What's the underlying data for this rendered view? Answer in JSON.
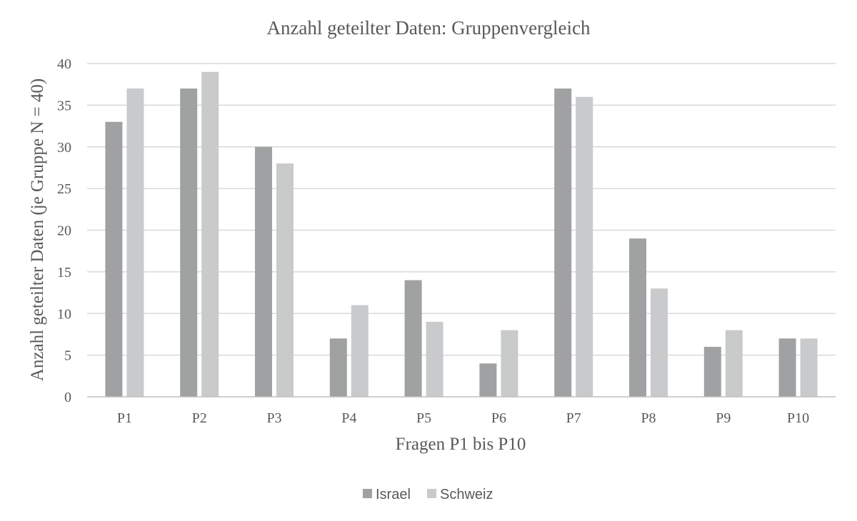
{
  "chart_data": {
    "type": "bar",
    "title": "Anzahl geteilter Daten: Gruppenvergleich",
    "xlabel": "Fragen P1 bis P10",
    "ylabel": "Anzahl geteilter Daten (je Gruppe N = 40)",
    "categories": [
      "P1",
      "P2",
      "P3",
      "P4",
      "P5",
      "P6",
      "P7",
      "P8",
      "P9",
      "P10"
    ],
    "series": [
      {
        "name": "Israel",
        "values": [
          33,
          37,
          30,
          7,
          14,
          4,
          37,
          19,
          6,
          7
        ],
        "color": "#a0a1a2"
      },
      {
        "name": "Schweiz",
        "values": [
          37,
          39,
          28,
          11,
          9,
          8,
          36,
          13,
          8,
          7
        ],
        "color": "#c9cacb"
      }
    ],
    "ylim": [
      0,
      40
    ],
    "yticks": [
      0,
      5,
      10,
      15,
      20,
      25,
      30,
      35,
      40
    ],
    "grid": true,
    "legend": "bottom-center"
  }
}
